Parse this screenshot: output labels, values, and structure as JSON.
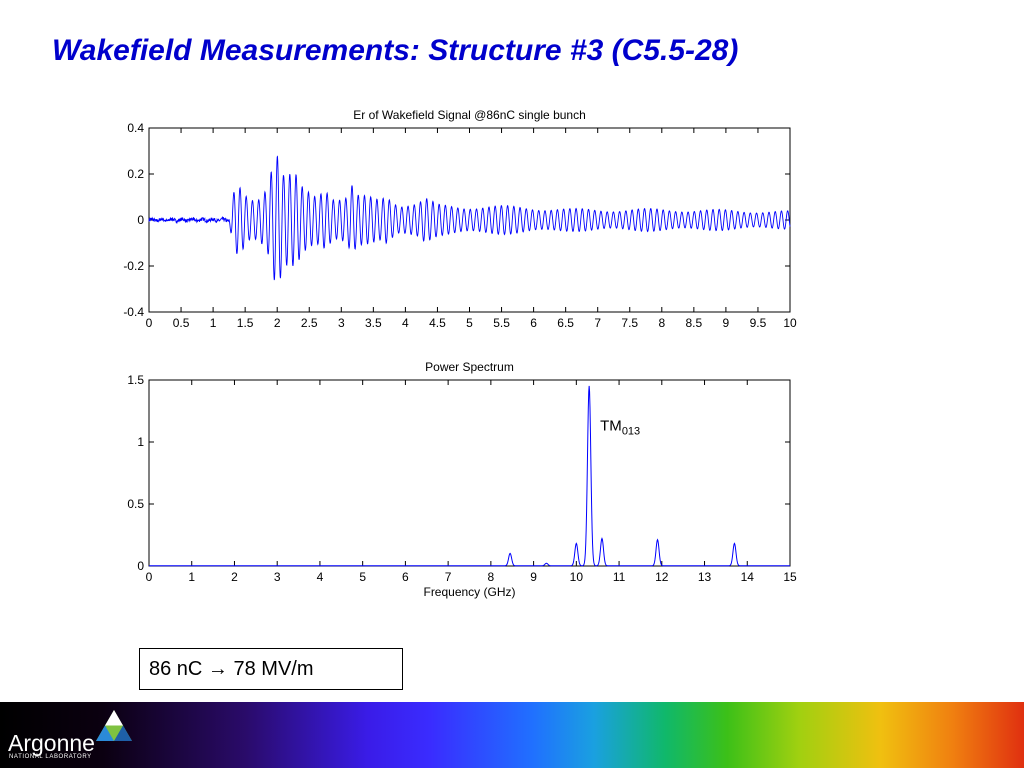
{
  "slide": {
    "title": "Wakefield Measurements: Structure #3 (C5.5-28)",
    "result_box": "86 nC → 78 MV/m"
  },
  "footer": {
    "logo_word": "Argonne",
    "logo_sub": "NATIONAL LABORATORY"
  },
  "chart_data": [
    {
      "type": "line",
      "title": "Er of Wakefield Signal @86nC single bunch",
      "xlabel": "",
      "ylabel": "",
      "xlim": [
        0,
        10
      ],
      "ylim": [
        -0.4,
        0.4
      ],
      "xticks": [
        "0",
        "0.5",
        "1",
        "1.5",
        "2",
        "2.5",
        "3",
        "3.5",
        "4",
        "4.5",
        "5",
        "5.5",
        "6",
        "6.5",
        "7",
        "7.5",
        "8",
        "8.5",
        "9",
        "9.5",
        "10"
      ],
      "yticks": [
        "-0.4",
        "-0.2",
        "0",
        "0.2",
        "0.4"
      ],
      "color": "#0000ff",
      "series": [
        {
          "envelope": [
            [
              0,
              0.01
            ],
            [
              1.25,
              0.01
            ],
            [
              1.3,
              0.1
            ],
            [
              1.35,
              0.17
            ],
            [
              1.45,
              0.17
            ],
            [
              1.55,
              0.12
            ],
            [
              1.7,
              0.12
            ],
            [
              1.85,
              0.18
            ],
            [
              1.9,
              0.25
            ],
            [
              1.97,
              0.32
            ],
            [
              2.03,
              0.3
            ],
            [
              2.1,
              0.2
            ],
            [
              2.3,
              0.2
            ],
            [
              2.4,
              0.15
            ],
            [
              2.6,
              0.13
            ],
            [
              2.75,
              0.18
            ],
            [
              2.9,
              0.11
            ],
            [
              3.1,
              0.11
            ],
            [
              3.15,
              0.17
            ],
            [
              3.25,
              0.11
            ],
            [
              3.6,
              0.1
            ],
            [
              3.7,
              0.13
            ],
            [
              3.9,
              0.08
            ],
            [
              4.2,
              0.08
            ],
            [
              4.3,
              0.1
            ],
            [
              4.5,
              0.07
            ],
            [
              6.0,
              0.06
            ],
            [
              6.6,
              0.05
            ],
            [
              7.5,
              0.05
            ],
            [
              8.2,
              0.05
            ],
            [
              10,
              0.04
            ]
          ],
          "frequency_ghz": 10.3
        }
      ]
    },
    {
      "type": "line",
      "title": "Power Spectrum",
      "xlabel": "Frequency (GHz)",
      "ylabel": "",
      "xlim": [
        0,
        15
      ],
      "ylim": [
        0,
        1.5
      ],
      "xticks": [
        "0",
        "1",
        "2",
        "3",
        "4",
        "5",
        "6",
        "7",
        "8",
        "9",
        "10",
        "11",
        "12",
        "13",
        "14",
        "15"
      ],
      "yticks": [
        "0",
        "0.5",
        "1",
        "1.5"
      ],
      "color": "#0000ff",
      "annotation": {
        "base": "TM",
        "sub": "013",
        "x": 10.3,
        "y": 1.1
      },
      "series": [
        {
          "peaks": [
            [
              8.45,
              0.1
            ],
            [
              9.3,
              0.02
            ],
            [
              10.0,
              0.18
            ],
            [
              10.3,
              1.45
            ],
            [
              10.6,
              0.22
            ],
            [
              11.9,
              0.21
            ],
            [
              13.7,
              0.18
            ]
          ]
        }
      ]
    }
  ]
}
